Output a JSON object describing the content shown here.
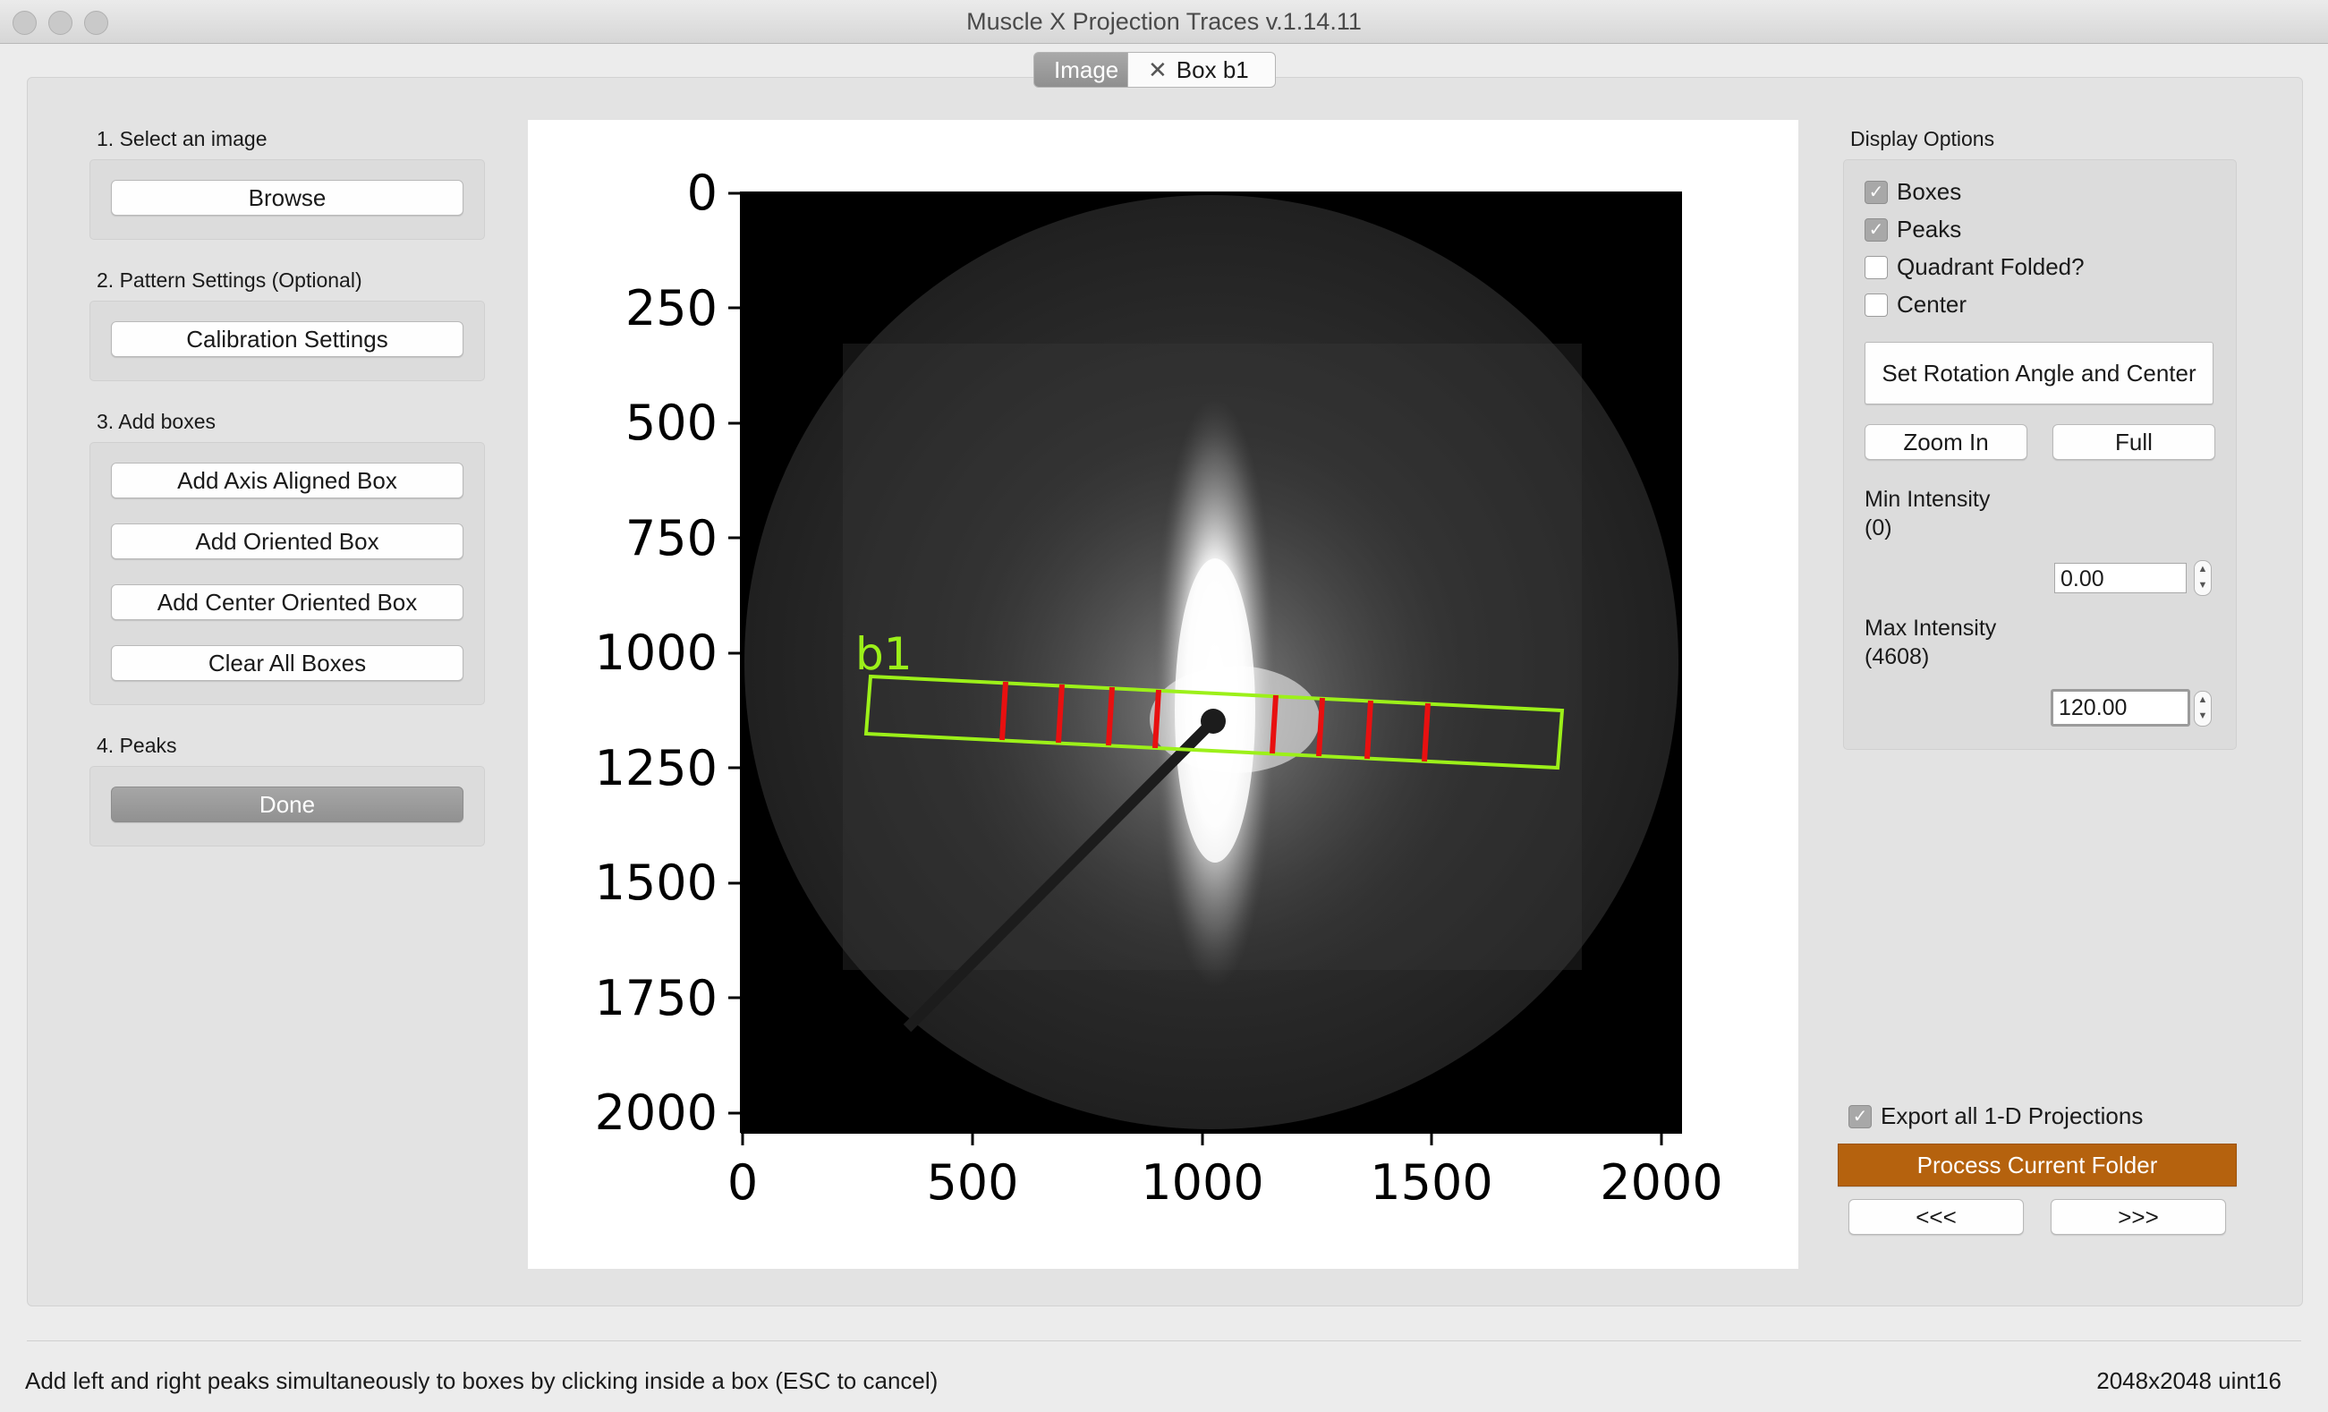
{
  "window": {
    "title": "Muscle X Projection Traces v.1.14.11"
  },
  "tabs": [
    {
      "label": "Image",
      "active": true
    },
    {
      "label": "Box b1",
      "active": false,
      "close_icon": "close-icon"
    }
  ],
  "left_panel": {
    "step1": {
      "label": "1. Select an image",
      "browse_button": "Browse"
    },
    "step2": {
      "label": "2. Pattern Settings (Optional)",
      "calibration_button": "Calibration Settings"
    },
    "step3": {
      "label": "3. Add boxes",
      "add_axis_aligned": "Add Axis Aligned Box",
      "add_oriented": "Add Oriented Box",
      "add_center_oriented": "Add Center Oriented Box",
      "clear_all": "Clear All Boxes"
    },
    "step4": {
      "label": "4. Peaks",
      "done_button": "Done"
    }
  },
  "figure": {
    "box_label": "b1",
    "y_ticks": [
      "0",
      "250",
      "500",
      "750",
      "1000",
      "1250",
      "1500",
      "1750",
      "2000"
    ],
    "x_ticks": [
      "0",
      "500",
      "1000",
      "1500",
      "2000"
    ],
    "colors": {
      "box": "#9cf019",
      "peaks": "#e81010"
    }
  },
  "display_options": {
    "label": "Display Options",
    "boxes": {
      "label": "Boxes",
      "checked": true
    },
    "peaks": {
      "label": "Peaks",
      "checked": true
    },
    "quadrant_folded": {
      "label": "Quadrant Folded?",
      "checked": false
    },
    "center": {
      "label": "Center",
      "checked": false
    },
    "set_rotation_button": "Set Rotation Angle and Center",
    "zoom_in_button": "Zoom In",
    "full_button": "Full",
    "min_intensity": {
      "label": "Min Intensity",
      "range": "(0)",
      "value": "0.00"
    },
    "max_intensity": {
      "label": "Max Intensity",
      "range": "(4608)",
      "value": "120.00"
    }
  },
  "bottom_right": {
    "export_projections": {
      "label": "Export all 1-D Projections",
      "checked": true
    },
    "process_button": "Process Current Folder",
    "prev_button": "<<<",
    "next_button": ">>>",
    "accent_color": "#b5620e"
  },
  "status": {
    "message": "Add left and right peaks simultaneously to boxes by clicking inside a box (ESC to cancel)",
    "image_info": "2048x2048 uint16"
  }
}
